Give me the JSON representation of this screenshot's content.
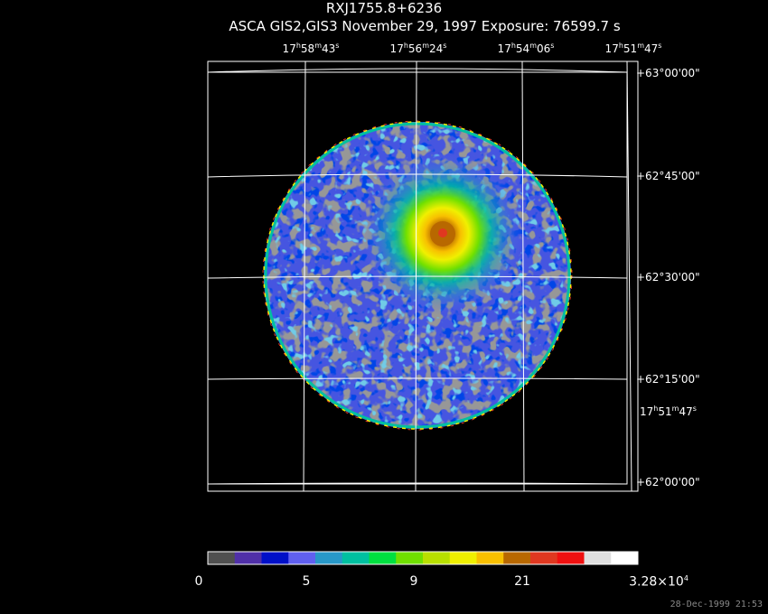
{
  "title": "RXJ1755.8+6236",
  "subtitle": "ASCA GIS2,GIS3 November 29, 1997 Exposure: 76599.7 s",
  "ra_labels": [
    {
      "h": "17",
      "m": "58",
      "s": "43"
    },
    {
      "h": "17",
      "m": "56",
      "s": "24"
    },
    {
      "h": "17",
      "m": "54",
      "s": "06"
    },
    {
      "h": "17",
      "m": "51",
      "s": "47"
    }
  ],
  "dec_labels": [
    "+63°00'00\"",
    "+62°45'00\"",
    "+62°30'00\"",
    "+62°15'00\"",
    "+62°00'00\""
  ],
  "extra_ra_label": {
    "h": "17",
    "m": "51",
    "s": "47"
  },
  "colorbar": {
    "colors": [
      "#505050",
      "#5030a8",
      "#0010c8",
      "#6060f0",
      "#2898c8",
      "#00c0a0",
      "#00e040",
      "#70e000",
      "#b8e000",
      "#f0f000",
      "#f8c000",
      "#b86800",
      "#e03820",
      "#f01010",
      "#e0e0e0",
      "#ffffff"
    ],
    "labels": [
      "0",
      "5",
      "9",
      "21"
    ],
    "max_label_mantissa": "3.28×10",
    "max_label_exp": "4"
  },
  "timestamp": "28-Dec-1999 21:53"
}
